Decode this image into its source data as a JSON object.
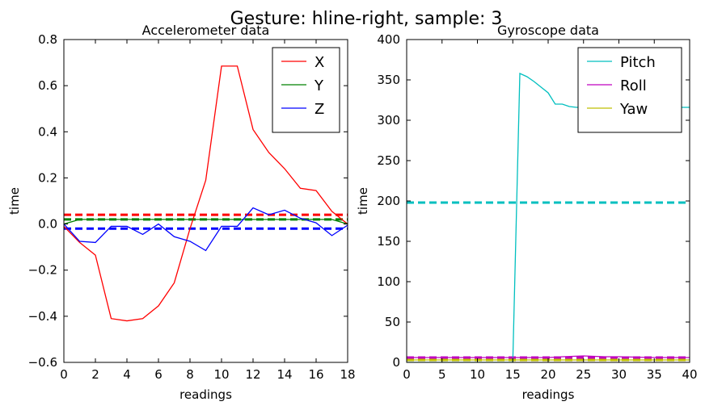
{
  "figure": {
    "suptitle": "Gesture: hline-right, sample: 3"
  },
  "chart_data": [
    {
      "type": "line",
      "title": "Accelerometer data",
      "xlabel": "readings",
      "ylabel": "time",
      "xlim": [
        0,
        18
      ],
      "ylim": [
        -0.6,
        0.8
      ],
      "xticks": [
        "0",
        "2",
        "4",
        "6",
        "8",
        "10",
        "12",
        "14",
        "16",
        "18"
      ],
      "yticks": [
        "−0.6",
        "−0.4",
        "−0.2",
        "0.0",
        "0.2",
        "0.4",
        "0.6",
        "0.8"
      ],
      "xtick_values": [
        0,
        2,
        4,
        6,
        8,
        10,
        12,
        14,
        16,
        18
      ],
      "ytick_values": [
        -0.6,
        -0.4,
        -0.2,
        0.0,
        0.2,
        0.4,
        0.6,
        0.8
      ],
      "legend_position": "top-right",
      "series": [
        {
          "name": "X",
          "color": "#ff0000",
          "x": [
            0,
            1,
            2,
            3,
            4,
            5,
            6,
            7,
            8,
            9,
            10,
            11,
            12,
            13,
            14,
            15,
            16,
            17,
            18
          ],
          "y": [
            -0.01,
            -0.08,
            -0.135,
            -0.41,
            -0.42,
            -0.41,
            -0.355,
            -0.255,
            -0.02,
            0.19,
            0.685,
            0.685,
            0.41,
            0.31,
            0.24,
            0.155,
            0.145,
            0.055,
            0.0
          ]
        },
        {
          "name": "Y",
          "color": "#008000",
          "x": [
            0,
            1,
            2,
            3,
            4,
            5,
            6,
            7,
            8,
            9,
            10,
            11,
            12,
            13,
            14,
            15,
            16,
            17,
            18
          ],
          "y": [
            0.0,
            0.02,
            0.02,
            0.02,
            0.02,
            0.02,
            0.02,
            0.02,
            0.02,
            0.02,
            0.02,
            0.02,
            0.02,
            0.02,
            0.02,
            0.02,
            0.02,
            0.02,
            0.0
          ]
        },
        {
          "name": "Z",
          "color": "#0000ff",
          "x": [
            0,
            1,
            2,
            3,
            4,
            5,
            6,
            7,
            8,
            9,
            10,
            11,
            12,
            13,
            14,
            15,
            16,
            17,
            18
          ],
          "y": [
            0.0,
            -0.075,
            -0.08,
            -0.01,
            -0.01,
            -0.045,
            0.0,
            -0.055,
            -0.075,
            -0.115,
            -0.01,
            -0.01,
            0.07,
            0.04,
            0.06,
            0.025,
            0.005,
            -0.05,
            -0.005
          ]
        }
      ],
      "mean_lines": [
        {
          "color": "#ff0000",
          "y": 0.04
        },
        {
          "color": "#008000",
          "y": 0.02
        },
        {
          "color": "#0000ff",
          "y": -0.02
        }
      ]
    },
    {
      "type": "line",
      "title": "Gyroscope data",
      "xlabel": "readings",
      "ylabel": "time",
      "xlim": [
        0,
        40
      ],
      "ylim": [
        0,
        400
      ],
      "xticks": [
        "0",
        "5",
        "10",
        "15",
        "20",
        "25",
        "30",
        "35",
        "40"
      ],
      "yticks": [
        "0",
        "50",
        "100",
        "150",
        "200",
        "250",
        "300",
        "350",
        "400"
      ],
      "xtick_values": [
        0,
        5,
        10,
        15,
        20,
        25,
        30,
        35,
        40
      ],
      "ytick_values": [
        0,
        50,
        100,
        150,
        200,
        250,
        300,
        350,
        400
      ],
      "legend_position": "top-right",
      "series": [
        {
          "name": "Pitch",
          "color": "#00bfbf",
          "x": [
            0,
            5,
            10,
            14,
            15,
            16,
            17,
            18,
            19,
            20,
            21,
            22,
            23,
            24,
            25,
            26,
            27,
            28,
            29,
            30,
            31,
            32,
            33,
            34,
            35,
            36,
            37,
            38,
            39,
            40
          ],
          "y": [
            0,
            0,
            0,
            0,
            0,
            358,
            354,
            348,
            341,
            334,
            320,
            320,
            317,
            316,
            316,
            316,
            316,
            316,
            316,
            316,
            316,
            316,
            316,
            316,
            316,
            316,
            316,
            316,
            316,
            316
          ]
        },
        {
          "name": "Roll",
          "color": "#bf00bf",
          "x": [
            0,
            5,
            10,
            15,
            20,
            22,
            25,
            28,
            30,
            35,
            40
          ],
          "y": [
            6,
            6,
            6,
            6,
            6,
            7,
            8,
            7,
            7,
            6,
            6
          ]
        },
        {
          "name": "Yaw",
          "color": "#bfbf00",
          "x": [
            0,
            5,
            10,
            15,
            20,
            25,
            30,
            35,
            40
          ],
          "y": [
            3,
            3,
            3,
            3,
            3,
            3,
            3,
            3,
            3
          ]
        }
      ],
      "mean_lines": [
        {
          "color": "#00bfbf",
          "y": 198
        },
        {
          "color": "#bf00bf",
          "y": 6
        },
        {
          "color": "#bfbf00",
          "y": 3
        }
      ]
    }
  ]
}
